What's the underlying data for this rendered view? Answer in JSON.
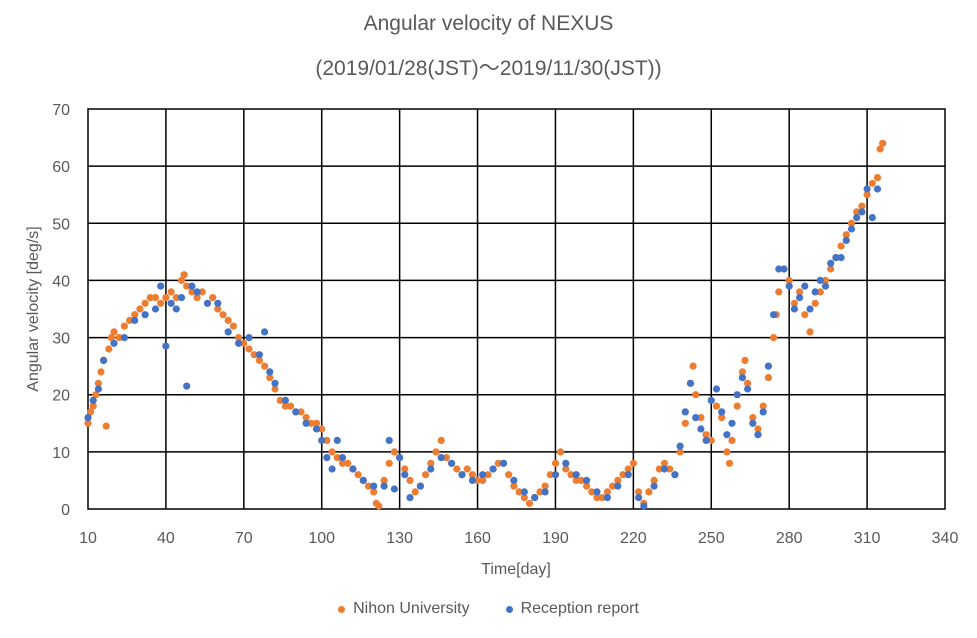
{
  "chart_data": {
    "type": "scatter",
    "title": "Angular velocity of NEXUS",
    "subtitle": "(2019/01/28(JST)～2019/11/30(JST))",
    "xlabel": "Time[day]",
    "ylabel": "Angular velocity [deg/s]",
    "xlim": [
      10,
      340
    ],
    "ylim": [
      0,
      70
    ],
    "xticks": [
      10,
      40,
      70,
      100,
      130,
      160,
      190,
      220,
      250,
      280,
      310,
      340
    ],
    "yticks": [
      0,
      10,
      20,
      30,
      40,
      50,
      60,
      70
    ],
    "grid": true,
    "legend_position": "bottom",
    "series": [
      {
        "name": "Nihon University",
        "color": "#ED7D31",
        "points": [
          [
            10,
            15
          ],
          [
            11,
            17
          ],
          [
            12,
            18
          ],
          [
            13,
            20
          ],
          [
            14,
            22
          ],
          [
            15,
            24
          ],
          [
            16,
            26
          ],
          [
            17,
            14.5
          ],
          [
            18,
            28
          ],
          [
            19,
            30
          ],
          [
            20,
            31
          ],
          [
            22,
            30
          ],
          [
            24,
            32
          ],
          [
            26,
            33
          ],
          [
            28,
            34
          ],
          [
            30,
            35
          ],
          [
            32,
            36
          ],
          [
            34,
            37
          ],
          [
            36,
            37
          ],
          [
            38,
            36
          ],
          [
            40,
            37
          ],
          [
            42,
            38
          ],
          [
            44,
            37
          ],
          [
            46,
            40
          ],
          [
            47,
            41
          ],
          [
            48,
            39
          ],
          [
            50,
            38
          ],
          [
            52,
            37
          ],
          [
            54,
            38
          ],
          [
            56,
            36
          ],
          [
            58,
            37
          ],
          [
            60,
            35
          ],
          [
            62,
            34
          ],
          [
            64,
            33
          ],
          [
            66,
            32
          ],
          [
            68,
            30
          ],
          [
            70,
            29
          ],
          [
            72,
            28
          ],
          [
            74,
            27
          ],
          [
            76,
            26
          ],
          [
            78,
            25
          ],
          [
            80,
            23
          ],
          [
            82,
            21
          ],
          [
            84,
            19
          ],
          [
            86,
            18
          ],
          [
            88,
            18
          ],
          [
            90,
            17
          ],
          [
            92,
            17
          ],
          [
            94,
            16
          ],
          [
            96,
            15
          ],
          [
            98,
            15
          ],
          [
            100,
            14
          ],
          [
            102,
            12
          ],
          [
            104,
            10
          ],
          [
            106,
            9
          ],
          [
            108,
            8
          ],
          [
            110,
            8
          ],
          [
            112,
            7
          ],
          [
            114,
            6
          ],
          [
            116,
            5
          ],
          [
            118,
            4
          ],
          [
            120,
            3
          ],
          [
            121,
            1
          ],
          [
            122,
            0.5
          ],
          [
            124,
            5
          ],
          [
            126,
            8
          ],
          [
            128,
            10
          ],
          [
            130,
            9
          ],
          [
            132,
            7
          ],
          [
            134,
            5
          ],
          [
            136,
            3
          ],
          [
            138,
            4
          ],
          [
            140,
            6
          ],
          [
            142,
            8
          ],
          [
            144,
            10
          ],
          [
            146,
            12
          ],
          [
            148,
            9
          ],
          [
            150,
            8
          ],
          [
            152,
            7
          ],
          [
            154,
            6
          ],
          [
            156,
            7
          ],
          [
            158,
            6
          ],
          [
            160,
            5
          ],
          [
            162,
            5
          ],
          [
            164,
            6
          ],
          [
            166,
            7
          ],
          [
            168,
            8
          ],
          [
            170,
            8
          ],
          [
            172,
            6
          ],
          [
            174,
            4
          ],
          [
            176,
            3
          ],
          [
            178,
            2
          ],
          [
            180,
            1
          ],
          [
            182,
            2
          ],
          [
            184,
            3
          ],
          [
            186,
            4
          ],
          [
            188,
            6
          ],
          [
            190,
            8
          ],
          [
            192,
            10
          ],
          [
            194,
            7
          ],
          [
            196,
            6
          ],
          [
            198,
            5
          ],
          [
            200,
            5
          ],
          [
            202,
            4
          ],
          [
            204,
            3
          ],
          [
            206,
            2
          ],
          [
            208,
            2
          ],
          [
            210,
            3
          ],
          [
            212,
            4
          ],
          [
            214,
            5
          ],
          [
            216,
            6
          ],
          [
            218,
            7
          ],
          [
            220,
            8
          ],
          [
            222,
            3
          ],
          [
            224,
            1
          ],
          [
            226,
            3
          ],
          [
            228,
            5
          ],
          [
            230,
            7
          ],
          [
            232,
            8
          ],
          [
            234,
            7
          ],
          [
            236,
            6
          ],
          [
            238,
            10
          ],
          [
            240,
            15
          ],
          [
            242,
            22
          ],
          [
            243,
            25
          ],
          [
            244,
            20
          ],
          [
            246,
            16
          ],
          [
            248,
            13
          ],
          [
            250,
            12
          ],
          [
            252,
            18
          ],
          [
            254,
            16
          ],
          [
            256,
            10
          ],
          [
            257,
            8
          ],
          [
            258,
            12
          ],
          [
            260,
            18
          ],
          [
            262,
            24
          ],
          [
            263,
            26
          ],
          [
            264,
            22
          ],
          [
            266,
            16
          ],
          [
            268,
            14
          ],
          [
            270,
            18
          ],
          [
            272,
            23
          ],
          [
            274,
            30
          ],
          [
            275,
            34
          ],
          [
            276,
            38
          ],
          [
            278,
            42
          ],
          [
            280,
            40
          ],
          [
            282,
            36
          ],
          [
            284,
            38
          ],
          [
            286,
            34
          ],
          [
            288,
            31
          ],
          [
            290,
            36
          ],
          [
            292,
            38
          ],
          [
            294,
            40
          ],
          [
            296,
            42
          ],
          [
            298,
            44
          ],
          [
            300,
            46
          ],
          [
            302,
            48
          ],
          [
            304,
            50
          ],
          [
            306,
            52
          ],
          [
            308,
            53
          ],
          [
            310,
            55
          ],
          [
            312,
            57
          ],
          [
            314,
            58
          ],
          [
            315,
            63
          ],
          [
            316,
            64
          ]
        ]
      },
      {
        "name": "Reception report",
        "color": "#4472C4",
        "points": [
          [
            10,
            16
          ],
          [
            12,
            19
          ],
          [
            14,
            21
          ],
          [
            16,
            26
          ],
          [
            20,
            29
          ],
          [
            24,
            30
          ],
          [
            28,
            33
          ],
          [
            32,
            34
          ],
          [
            36,
            35
          ],
          [
            38,
            39
          ],
          [
            40,
            28.5
          ],
          [
            42,
            36
          ],
          [
            44,
            35
          ],
          [
            46,
            37
          ],
          [
            48,
            21.5
          ],
          [
            50,
            39
          ],
          [
            52,
            38
          ],
          [
            56,
            36
          ],
          [
            60,
            36
          ],
          [
            64,
            31
          ],
          [
            68,
            29
          ],
          [
            72,
            30
          ],
          [
            76,
            27
          ],
          [
            78,
            31
          ],
          [
            80,
            24
          ],
          [
            82,
            22
          ],
          [
            86,
            19
          ],
          [
            90,
            17
          ],
          [
            94,
            15
          ],
          [
            98,
            14
          ],
          [
            100,
            12
          ],
          [
            102,
            9
          ],
          [
            104,
            7
          ],
          [
            106,
            12
          ],
          [
            108,
            9
          ],
          [
            112,
            7
          ],
          [
            116,
            5
          ],
          [
            120,
            4
          ],
          [
            124,
            4
          ],
          [
            126,
            12
          ],
          [
            128,
            3.5
          ],
          [
            130,
            9
          ],
          [
            132,
            6
          ],
          [
            134,
            2
          ],
          [
            138,
            4
          ],
          [
            142,
            7
          ],
          [
            146,
            9
          ],
          [
            150,
            8
          ],
          [
            154,
            6
          ],
          [
            158,
            5
          ],
          [
            162,
            6
          ],
          [
            166,
            7
          ],
          [
            170,
            8
          ],
          [
            174,
            5
          ],
          [
            178,
            3
          ],
          [
            182,
            2
          ],
          [
            186,
            3
          ],
          [
            190,
            6
          ],
          [
            194,
            8
          ],
          [
            198,
            6
          ],
          [
            202,
            5
          ],
          [
            206,
            3
          ],
          [
            210,
            2
          ],
          [
            214,
            4
          ],
          [
            218,
            6
          ],
          [
            222,
            2
          ],
          [
            224,
            0.5
          ],
          [
            228,
            4
          ],
          [
            232,
            7
          ],
          [
            236,
            6
          ],
          [
            238,
            11
          ],
          [
            240,
            17
          ],
          [
            242,
            22
          ],
          [
            244,
            16
          ],
          [
            246,
            14
          ],
          [
            248,
            12
          ],
          [
            250,
            19
          ],
          [
            252,
            21
          ],
          [
            254,
            17
          ],
          [
            256,
            13
          ],
          [
            258,
            15
          ],
          [
            260,
            20
          ],
          [
            262,
            23
          ],
          [
            264,
            21
          ],
          [
            266,
            15
          ],
          [
            268,
            13
          ],
          [
            270,
            17
          ],
          [
            272,
            25
          ],
          [
            274,
            34
          ],
          [
            276,
            42
          ],
          [
            278,
            42
          ],
          [
            280,
            39
          ],
          [
            282,
            35
          ],
          [
            284,
            37
          ],
          [
            286,
            39
          ],
          [
            288,
            35
          ],
          [
            290,
            38
          ],
          [
            292,
            40
          ],
          [
            294,
            39
          ],
          [
            296,
            43
          ],
          [
            298,
            44
          ],
          [
            300,
            44
          ],
          [
            302,
            47
          ],
          [
            304,
            49
          ],
          [
            306,
            51
          ],
          [
            308,
            52
          ],
          [
            310,
            56
          ],
          [
            312,
            51
          ],
          [
            314,
            56
          ]
        ]
      }
    ]
  }
}
